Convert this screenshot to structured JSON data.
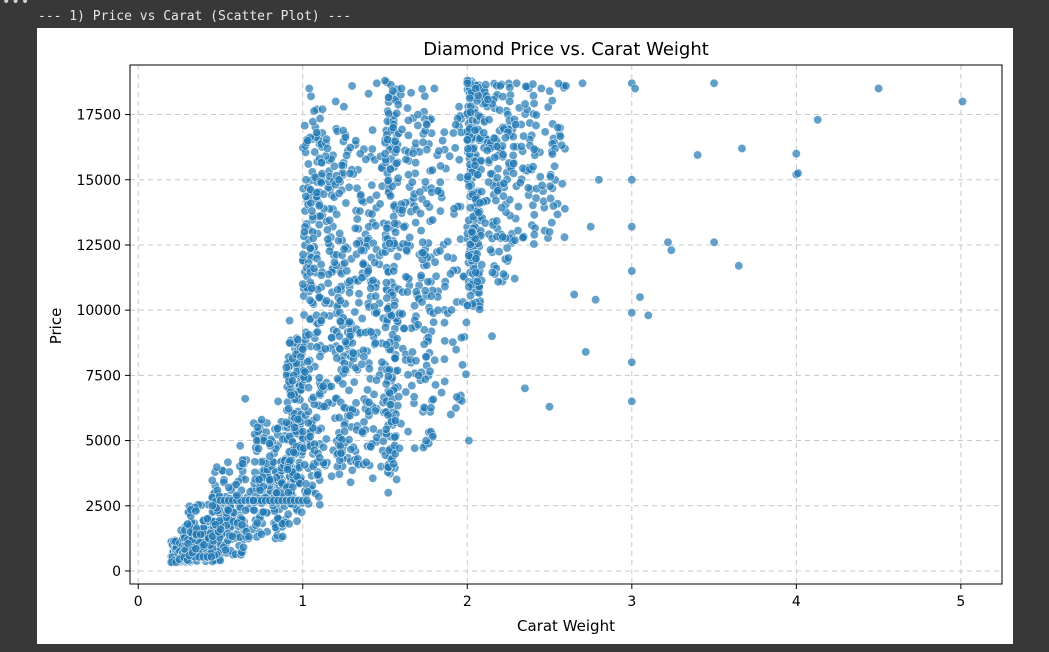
{
  "cell": {
    "menu_glyph": "•••",
    "output_line": "--- 1) Price vs Carat (Scatter Plot) ---"
  },
  "chart_data": {
    "type": "scatter",
    "title": "Diamond Price vs. Carat Weight",
    "xlabel": "Carat Weight",
    "ylabel": "Price",
    "xlim": [
      -0.05,
      5.25
    ],
    "ylim": [
      -500,
      19400
    ],
    "x_ticks": [
      0,
      1,
      2,
      3,
      4,
      5
    ],
    "y_ticks": [
      0,
      2500,
      5000,
      7500,
      10000,
      12500,
      15000,
      17500
    ],
    "grid": true,
    "grid_style": "dashed",
    "point_color": "#1f77b4",
    "point_edge_color": "#ffffff",
    "point_alpha": 0.7,
    "series": [
      {
        "points": [
          [
            0.23,
            330
          ],
          [
            0.25,
            450
          ],
          [
            0.28,
            520
          ],
          [
            0.3,
            420
          ],
          [
            0.31,
            600
          ],
          [
            0.33,
            700
          ],
          [
            0.35,
            850
          ],
          [
            0.3,
            1800
          ],
          [
            0.32,
            2350
          ],
          [
            0.35,
            2300
          ],
          [
            0.38,
            1400
          ],
          [
            0.4,
            1000
          ],
          [
            0.42,
            2000
          ],
          [
            0.45,
            2500
          ],
          [
            0.5,
            1600
          ],
          [
            0.52,
            3400
          ],
          [
            0.55,
            3200
          ],
          [
            0.6,
            2900
          ],
          [
            0.62,
            4800
          ],
          [
            0.65,
            6600
          ],
          [
            0.7,
            2700
          ],
          [
            0.72,
            5000
          ],
          [
            0.75,
            5800
          ],
          [
            0.8,
            3500
          ],
          [
            0.85,
            6500
          ],
          [
            0.9,
            7800
          ],
          [
            0.92,
            9600
          ],
          [
            0.95,
            5500
          ],
          [
            1.0,
            8500
          ],
          [
            1.0,
            11000
          ],
          [
            1.01,
            13000
          ],
          [
            1.02,
            15000
          ],
          [
            1.03,
            16500
          ],
          [
            1.04,
            18500
          ],
          [
            1.05,
            18200
          ],
          [
            1.1,
            14000
          ],
          [
            1.12,
            17700
          ],
          [
            1.15,
            16200
          ],
          [
            1.2,
            18000
          ],
          [
            1.22,
            15000
          ],
          [
            1.25,
            17800
          ],
          [
            1.3,
            18600
          ],
          [
            1.35,
            16000
          ],
          [
            1.4,
            18300
          ],
          [
            1.45,
            18700
          ],
          [
            1.5,
            18800
          ],
          [
            1.5,
            16000
          ],
          [
            1.52,
            3000
          ],
          [
            1.55,
            17000
          ],
          [
            1.6,
            18500
          ],
          [
            1.7,
            17500
          ],
          [
            1.75,
            5000
          ],
          [
            1.8,
            18500
          ],
          [
            1.85,
            16500
          ],
          [
            1.9,
            6000
          ],
          [
            1.95,
            17800
          ],
          [
            2.0,
            18800
          ],
          [
            2.0,
            18700
          ],
          [
            2.01,
            5000
          ],
          [
            2.05,
            18500
          ],
          [
            2.1,
            16800
          ],
          [
            2.15,
            9000
          ],
          [
            2.2,
            18600
          ],
          [
            2.25,
            12000
          ],
          [
            2.3,
            18700
          ],
          [
            2.35,
            7000
          ],
          [
            2.4,
            15500
          ],
          [
            2.45,
            18500
          ],
          [
            2.5,
            6300
          ],
          [
            2.5,
            13000
          ],
          [
            2.55,
            17000
          ],
          [
            2.6,
            18600
          ],
          [
            2.65,
            10600
          ],
          [
            2.7,
            18700
          ],
          [
            2.72,
            8400
          ],
          [
            2.75,
            13200
          ],
          [
            2.78,
            10400
          ],
          [
            2.8,
            15000
          ],
          [
            3.0,
            6500
          ],
          [
            3.0,
            8000
          ],
          [
            3.0,
            9900
          ],
          [
            3.0,
            11500
          ],
          [
            3.0,
            13200
          ],
          [
            3.0,
            15000
          ],
          [
            3.0,
            18700
          ],
          [
            3.02,
            18500
          ],
          [
            3.05,
            10500
          ],
          [
            3.1,
            9800
          ],
          [
            3.22,
            12600
          ],
          [
            3.24,
            12300
          ],
          [
            3.4,
            15950
          ],
          [
            3.5,
            18700
          ],
          [
            3.5,
            12600
          ],
          [
            3.65,
            11700
          ],
          [
            3.67,
            16200
          ],
          [
            4.0,
            15200
          ],
          [
            4.01,
            15250
          ],
          [
            4.0,
            16000
          ],
          [
            4.13,
            17300
          ],
          [
            4.5,
            18500
          ],
          [
            5.01,
            18000
          ]
        ],
        "bands": [
          {
            "x": [
              0.2,
              0.32
            ],
            "y": [
              330,
              1200
            ]
          },
          {
            "x": [
              0.26,
              0.5
            ],
            "y": [
              350,
              1800
            ]
          },
          {
            "x": [
              0.3,
              0.65
            ],
            "y": [
              600,
              2600
            ]
          },
          {
            "x": [
              0.45,
              0.9
            ],
            "y": [
              1200,
              4300
            ]
          },
          {
            "x": [
              0.7,
              1.0
            ],
            "y": [
              1800,
              5800
            ]
          },
          {
            "x": [
              0.9,
              1.0
            ],
            "y": [
              2500,
              9000
            ]
          },
          {
            "x": [
              1.0,
              1.12
            ],
            "y": [
              2500,
              18000
            ]
          },
          {
            "x": [
              1.0,
              1.3
            ],
            "y": [
              3000,
              16500
            ]
          },
          {
            "x": [
              1.1,
              1.45
            ],
            "y": [
              3500,
              17000
            ]
          },
          {
            "x": [
              1.2,
              1.5
            ],
            "y": [
              4000,
              16000
            ]
          },
          {
            "x": [
              1.5,
              1.58
            ],
            "y": [
              3500,
              18800
            ]
          },
          {
            "x": [
              1.5,
              1.8
            ],
            "y": [
              4700,
              18500
            ]
          },
          {
            "x": [
              1.6,
              2.0
            ],
            "y": [
              6000,
              17500
            ]
          },
          {
            "x": [
              2.0,
              2.08
            ],
            "y": [
              10000,
              18800
            ]
          },
          {
            "x": [
              2.0,
              2.3
            ],
            "y": [
              11000,
              18700
            ]
          },
          {
            "x": [
              2.1,
              2.6
            ],
            "y": [
              12500,
              18700
            ]
          }
        ],
        "flat_rows": [
          {
            "x": [
              0.27,
              0.45
            ],
            "y": 540
          },
          {
            "x": [
              0.5,
              1.05
            ],
            "y": 2700
          }
        ]
      }
    ]
  }
}
